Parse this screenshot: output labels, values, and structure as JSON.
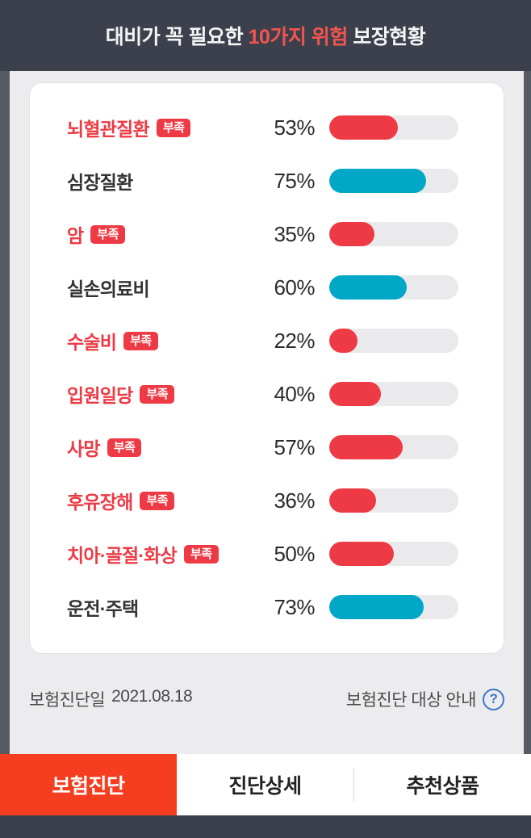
{
  "header": {
    "title_prefix": "대비가 꼭 필요한 ",
    "title_highlight": "10가지 위험",
    "title_suffix": " 보장현황"
  },
  "rows": [
    {
      "label": "뇌혈관질환",
      "badge": "부족",
      "percent": 53,
      "percent_label": "53%",
      "status": "insufficient"
    },
    {
      "label": "심장질환",
      "badge": null,
      "percent": 75,
      "percent_label": "75%",
      "status": "sufficient"
    },
    {
      "label": "암",
      "badge": "부족",
      "percent": 35,
      "percent_label": "35%",
      "status": "insufficient"
    },
    {
      "label": "실손의료비",
      "badge": null,
      "percent": 60,
      "percent_label": "60%",
      "status": "sufficient"
    },
    {
      "label": "수술비",
      "badge": "부족",
      "percent": 22,
      "percent_label": "22%",
      "status": "insufficient"
    },
    {
      "label": "입원일당",
      "badge": "부족",
      "percent": 40,
      "percent_label": "40%",
      "status": "insufficient"
    },
    {
      "label": "사망",
      "badge": "부족",
      "percent": 57,
      "percent_label": "57%",
      "status": "insufficient"
    },
    {
      "label": "후유장해",
      "badge": "부족",
      "percent": 36,
      "percent_label": "36%",
      "status": "insufficient"
    },
    {
      "label": "치아·골절·화상",
      "badge": "부족",
      "percent": 50,
      "percent_label": "50%",
      "status": "insufficient"
    },
    {
      "label": "운전·주택",
      "badge": null,
      "percent": 73,
      "percent_label": "73%",
      "status": "sufficient"
    }
  ],
  "chart_data": {
    "type": "bar",
    "title": "대비가 꼭 필요한 10가지 위험 보장현황",
    "categories": [
      "뇌혈관질환",
      "심장질환",
      "암",
      "실손의료비",
      "수술비",
      "입원일당",
      "사망",
      "후유장해",
      "치아·골절·화상",
      "운전·주택"
    ],
    "values": [
      53,
      75,
      35,
      60,
      22,
      40,
      57,
      36,
      50,
      73
    ],
    "unit": "%",
    "value_range": [
      0,
      100
    ],
    "insufficient_flags": [
      true,
      false,
      true,
      false,
      true,
      true,
      true,
      true,
      true,
      false
    ],
    "legend": "red = 부족(insufficient), teal = sufficient"
  },
  "footer": {
    "diagnosis_date_label": "보험진단일",
    "diagnosis_date": "2021.08.18",
    "guide_label": "보험진단 대상 안내",
    "question_icon": "?"
  },
  "tabs": [
    {
      "label": "보험진단",
      "active": true
    },
    {
      "label": "진단상세",
      "active": false
    },
    {
      "label": "추천상품",
      "active": false
    }
  ],
  "colors": {
    "red": "#ee3a44",
    "teal": "#00a7c6",
    "dark_text": "#333333",
    "active_tab": "#f53d20",
    "header_bg": "#3b404c"
  }
}
